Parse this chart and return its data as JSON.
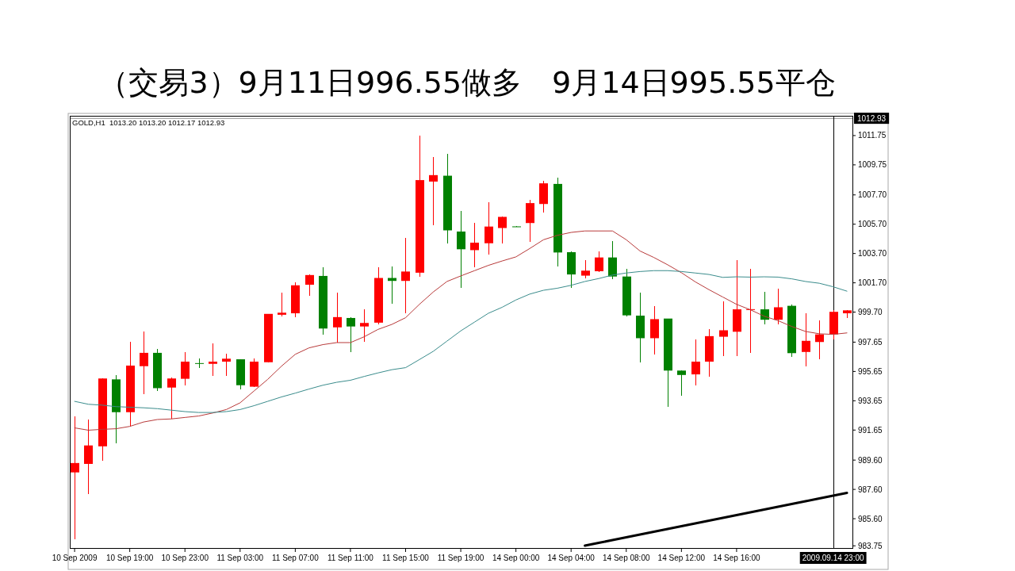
{
  "chart_data": {
    "type": "candlestick",
    "title": "（交易3）9月11日996.55做多　9月14日995.55平仓",
    "annotations": [
      "GOLD,H1  1013.20 1013.20 1012.17 1012.93"
    ],
    "categories": [
      "10 Sep 2009",
      null,
      null,
      null,
      "10 Sep 19:00",
      null,
      null,
      null,
      "10 Sep 23:00",
      null,
      null,
      null,
      "11 Sep 03:00",
      null,
      null,
      null,
      "11 Sep 07:00",
      null,
      null,
      null,
      "11 Sep 11:00",
      null,
      null,
      null,
      "11 Sep 15:00",
      null,
      null,
      null,
      "11 Sep 19:00",
      null,
      null,
      null,
      "14 Sep 00:00",
      null,
      null,
      null,
      "14 Sep 04:00",
      null,
      null,
      null,
      "14 Sep 08:00",
      null,
      null,
      null,
      "14 Sep 12:00",
      null,
      null,
      null,
      "14 Sep 16:00",
      null,
      null,
      null,
      null,
      null,
      null,
      "2009.09.14 23:00",
      null
    ],
    "ohlc": [
      [
        988.76,
        992.61,
        984.18,
        989.4
      ],
      [
        989.34,
        992.37,
        987.29,
        990.6
      ],
      [
        990.54,
        995.17,
        989.56,
        995.17
      ],
      [
        995.11,
        995.41,
        990.74,
        992.87
      ],
      [
        992.87,
        997.68,
        991.9,
        996.05
      ],
      [
        996.01,
        998.38,
        994.11,
        996.92
      ],
      [
        996.92,
        997.18,
        994.31,
        994.51
      ],
      [
        994.55,
        995.25,
        992.41,
        995.17
      ],
      [
        995.15,
        996.98,
        994.67,
        996.32
      ],
      [
        996.22,
        996.52,
        995.87,
        996.2
      ],
      [
        996.17,
        997.56,
        995.37,
        996.32
      ],
      [
        996.32,
        996.86,
        995.37,
        996.52
      ],
      [
        996.48,
        996.48,
        994.45,
        994.71
      ],
      [
        994.61,
        996.52,
        994.57,
        996.32
      ],
      [
        996.28,
        999.58,
        996.28,
        999.58
      ],
      [
        999.52,
        1001.03,
        999.38,
        999.66
      ],
      [
        999.62,
        1001.73,
        999.36,
        1001.53
      ],
      [
        1001.57,
        1002.29,
        1000.79,
        1002.23
      ],
      [
        1002.17,
        1002.77,
        998.16,
        998.58
      ],
      [
        998.66,
        1001.03,
        997.62,
        999.36
      ],
      [
        999.3,
        999.34,
        996.98,
        998.72
      ],
      [
        998.72,
        999.89,
        997.66,
        998.96
      ],
      [
        998.98,
        1002.77,
        998.86,
        1002.03
      ],
      [
        1002.03,
        1002.83,
        1000.29,
        1001.83
      ],
      [
        1001.83,
        1004.74,
        999.62,
        1002.47
      ],
      [
        1002.39,
        1011.72,
        1002.13,
        1008.71
      ],
      [
        1008.61,
        1010.29,
        1005.64,
        1009.05
      ],
      [
        1009.01,
        1010.51,
        1004.4,
        1005.28
      ],
      [
        1005.2,
        1006.6,
        1001.37,
        1003.99
      ],
      [
        1003.93,
        1005.8,
        1002.77,
        1004.44
      ],
      [
        1004.4,
        1007.18,
        1003.63,
        1005.54
      ],
      [
        1005.44,
        1006.24,
        1004.38,
        1006.2
      ],
      [
        1005.55,
        1005.55,
        1005.53,
        1005.53
      ],
      [
        1005.78,
        1007.34,
        1004.5,
        1007.14
      ],
      [
        1007.08,
        1008.65,
        1006.48,
        1008.49
      ],
      [
        1008.45,
        1008.89,
        1002.83,
        1003.77
      ],
      [
        1003.79,
        1003.83,
        1001.37,
        1002.27
      ],
      [
        1002.19,
        1003.27,
        1002.03,
        1002.53
      ],
      [
        1002.49,
        1003.83,
        1002.43,
        1003.43
      ],
      [
        1003.43,
        1004.54,
        1001.93,
        1002.13
      ],
      [
        1002.13,
        1002.63,
        999.42,
        999.48
      ],
      [
        999.46,
        1001.03,
        996.28,
        997.92
      ],
      [
        997.92,
        1000.13,
        996.82,
        999.22
      ],
      [
        999.26,
        999.26,
        993.21,
        995.71
      ],
      [
        995.71,
        995.71,
        993.97,
        995.41
      ],
      [
        995.45,
        997.82,
        994.71,
        996.32
      ],
      [
        996.32,
        998.52,
        995.27,
        998.06
      ],
      [
        998.02,
        1000.43,
        996.72,
        998.46
      ],
      [
        998.36,
        1003.23,
        996.72,
        999.89
      ],
      [
        999.88,
        1002.63,
        996.92,
        999.9
      ],
      [
        999.89,
        1001.07,
        998.86,
        999.18
      ],
      [
        999.18,
        1001.29,
        998.86,
        1000.03
      ],
      [
        1000.13,
        1000.23,
        996.66,
        996.9
      ],
      [
        996.98,
        999.62,
        996.01,
        997.74
      ],
      [
        997.66,
        999.16,
        996.46,
        998.18
      ],
      [
        998.18,
        999.82,
        997.86,
        999.72
      ],
      [
        999.62,
        999.82,
        999.32,
        999.82
      ]
    ],
    "colors": [
      "#ff0000",
      "#ff0000",
      "#ff0000",
      "#008000",
      "#ff0000",
      "#ff0000",
      "#008000",
      "#ff0000",
      "#ff0000",
      "#008000",
      "#ff0000",
      "#ff0000",
      "#008000",
      "#ff0000",
      "#ff0000",
      "#ff0000",
      "#ff0000",
      "#ff0000",
      "#008000",
      "#ff0000",
      "#008000",
      "#ff0000",
      "#ff0000",
      "#008000",
      "#ff0000",
      "#ff0000",
      "#ff0000",
      "#008000",
      "#008000",
      "#ff0000",
      "#ff0000",
      "#ff0000",
      "#008000",
      "#ff0000",
      "#ff0000",
      "#008000",
      "#008000",
      "#ff0000",
      "#ff0000",
      "#008000",
      "#008000",
      "#008000",
      "#ff0000",
      "#008000",
      "#008000",
      "#ff0000",
      "#ff0000",
      "#ff0000",
      "#ff0000",
      "#ff0000",
      "#008000",
      "#ff0000",
      "#008000",
      "#ff0000",
      "#ff0000",
      "#ff0000",
      "#ff0000"
    ],
    "series": [
      {
        "type": "line",
        "color": "#b83a3a",
        "values": [
          991.8,
          991.64,
          991.7,
          991.74,
          991.9,
          992.2,
          992.37,
          992.41,
          992.51,
          992.61,
          992.81,
          993.05,
          993.51,
          994.31,
          995.11,
          996.01,
          996.82,
          997.26,
          997.48,
          997.62,
          997.62,
          998.02,
          998.52,
          998.86,
          999.32,
          1000.23,
          1001.07,
          1001.79,
          1002.17,
          1002.53,
          1002.89,
          1003.19,
          1003.47,
          1004.04,
          1004.64,
          1004.94,
          1005.14,
          1005.24,
          1005.24,
          1005.24,
          1004.64,
          1003.87,
          1003.43,
          1002.93,
          1002.39,
          1001.77,
          1001.23,
          1000.73,
          1000.23,
          999.86,
          999.42,
          999.12,
          998.72,
          998.38,
          998.22,
          998.18,
          998.28
        ]
      },
      {
        "type": "line",
        "color": "#3a8c8c",
        "values": [
          993.61,
          993.41,
          993.35,
          993.25,
          993.21,
          993.17,
          993.11,
          993.01,
          992.91,
          992.85,
          992.85,
          992.91,
          993.05,
          993.31,
          993.61,
          993.91,
          994.17,
          994.45,
          994.71,
          994.91,
          995.05,
          995.31,
          995.55,
          995.77,
          995.91,
          996.46,
          997.02,
          997.72,
          998.42,
          999.02,
          999.62,
          1000.03,
          1000.53,
          1000.93,
          1001.19,
          1001.33,
          1001.53,
          1001.79,
          1001.99,
          1002.23,
          1002.37,
          1002.47,
          1002.53,
          1002.53,
          1002.47,
          1002.37,
          1002.27,
          1002.07,
          1002.11,
          1002.09,
          1002.11,
          1002.09,
          1001.97,
          1001.79,
          1001.67,
          1001.43,
          1001.13
        ]
      },
      {
        "type": "line",
        "color": "#000000",
        "values": [
          null,
          null,
          null,
          null,
          null,
          null,
          null,
          null,
          null,
          null,
          null,
          null,
          null,
          null,
          null,
          null,
          null,
          null,
          null,
          null,
          null,
          null,
          null,
          null,
          null,
          null,
          null,
          null,
          null,
          null,
          null,
          null,
          null,
          null,
          null,
          null,
          null,
          983.76,
          983.95,
          984.14,
          984.33,
          984.52,
          984.71,
          984.9,
          985.09,
          985.28,
          985.47,
          985.66,
          985.85,
          986.04,
          986.23,
          986.41,
          986.6,
          986.79,
          986.98,
          987.17,
          987.36
        ]
      }
    ],
    "ylim": [
      983.6,
      1013.1
    ],
    "yticks": [
      1011.75,
      1009.75,
      {
        "value": 1007.7,
        "label": "1007.70"
      },
      {
        "value": 1005.7,
        "label": "1005.70"
      },
      {
        "value": 1003.7,
        "label": "1003.70"
      },
      {
        "value": 1001.7,
        "label": "1001.70"
      },
      {
        "value": 999.7,
        "label": "999.70"
      },
      997.65,
      995.65,
      993.65,
      991.65,
      {
        "value": 989.6,
        "label": "989.60"
      },
      {
        "value": 987.6,
        "label": "987.60"
      },
      {
        "value": 985.6,
        "label": "985.60"
      },
      983.75
    ],
    "ref_lines": [
      {
        "axis": "y",
        "value": 1012.93,
        "label": "1012.93",
        "color": "#a0a0a0"
      },
      {
        "axis": "x",
        "value": "2009.09.14 23:00",
        "color": "#000000"
      }
    ]
  }
}
